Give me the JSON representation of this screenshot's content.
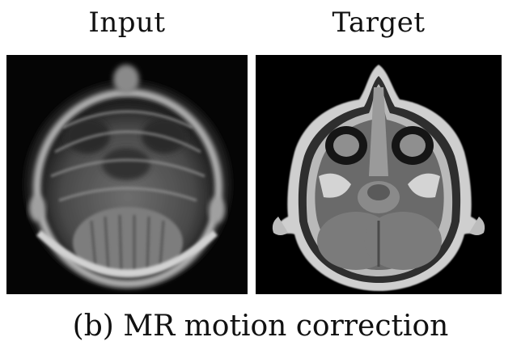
{
  "panels": [
    {
      "label": "Input"
    },
    {
      "label": "Target"
    }
  ],
  "caption": "(b) MR motion correction"
}
